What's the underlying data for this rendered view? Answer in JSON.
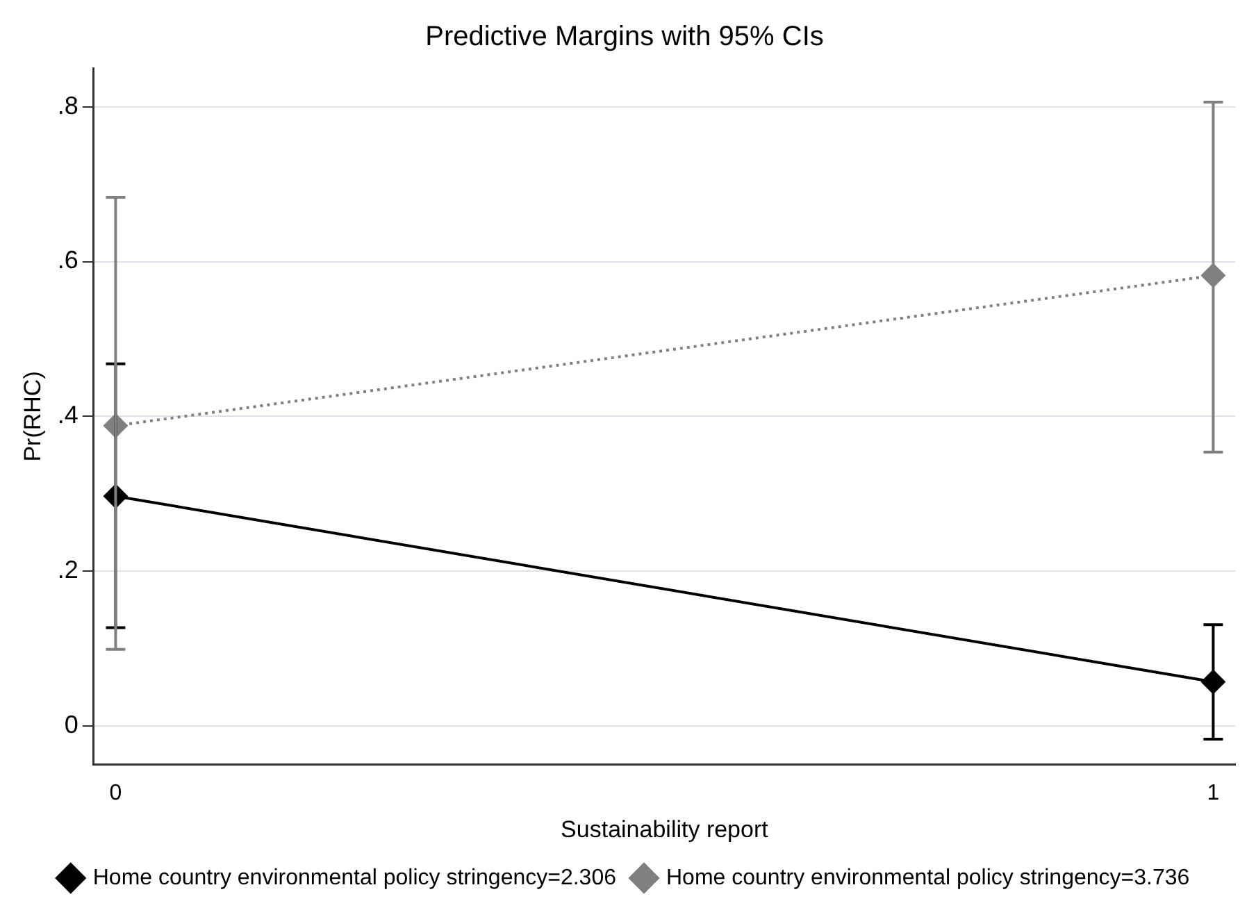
{
  "chart_data": {
    "type": "line",
    "title": "Predictive Margins with 95% CIs",
    "xlabel": "Sustainability report",
    "ylabel": "Pr(RHC)",
    "x": [
      0,
      1
    ],
    "series": [
      {
        "name": "Home country environmental policy stringency=2.306",
        "color": "#000000",
        "values": [
          0.297,
          0.057
        ],
        "errors": [
          [
            0.127,
            0.468
          ],
          [
            -0.017,
            0.131
          ]
        ],
        "line_style": "solid"
      },
      {
        "name": "Home country environmental policy stringency=3.736",
        "color": "#808080",
        "values": [
          0.388,
          0.582
        ],
        "errors": [
          [
            0.099,
            0.683
          ],
          [
            0.354,
            0.806
          ]
        ],
        "line_style": "dotted"
      }
    ],
    "xlim": [
      -0.02,
      1.02
    ],
    "xticks": [
      0,
      1
    ],
    "ylim": [
      -0.05,
      0.85
    ],
    "yticks": [
      0,
      {
        "value": 0.2,
        "label": ".2"
      },
      {
        "value": 0.4,
        "label": ".4"
      },
      {
        "value": 0.6,
        "label": ".6"
      },
      {
        "value": 0.8,
        "label": ".8"
      }
    ],
    "grid": "y",
    "legend": "bottom",
    "marker": "diamond"
  }
}
